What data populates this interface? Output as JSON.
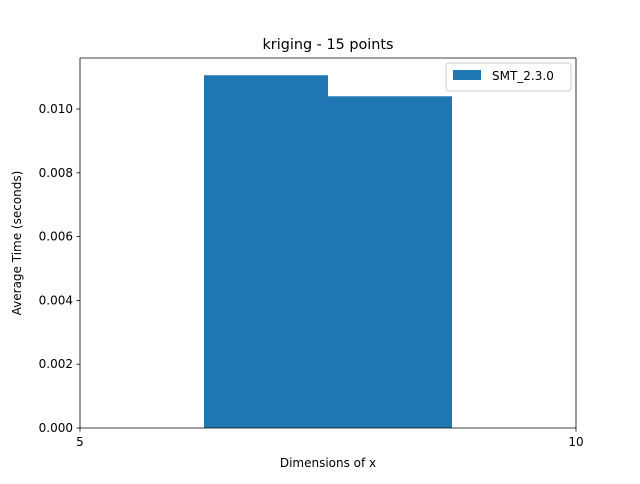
{
  "chart_data": {
    "type": "bar",
    "title": "kriging - 15 points",
    "xlabel": "Dimensions of x",
    "ylabel": "Average Time (seconds)",
    "xlim": [
      5,
      10
    ],
    "ylim": [
      0,
      0.0116
    ],
    "xticks": [
      5,
      10
    ],
    "xtick_labels": [
      "5",
      "10"
    ],
    "yticks": [
      0.0,
      0.002,
      0.004,
      0.006,
      0.008,
      0.01
    ],
    "ytick_labels": [
      "0.000",
      "0.002",
      "0.004",
      "0.006",
      "0.008",
      "0.010"
    ],
    "grid": false,
    "legend_position": "top-right",
    "bar_width": 1.25,
    "series": [
      {
        "name": "SMT_2.3.0",
        "color": "#1f77b4",
        "x": [
          6.875,
          8.125
        ],
        "values": [
          0.01106,
          0.0104
        ]
      }
    ]
  }
}
